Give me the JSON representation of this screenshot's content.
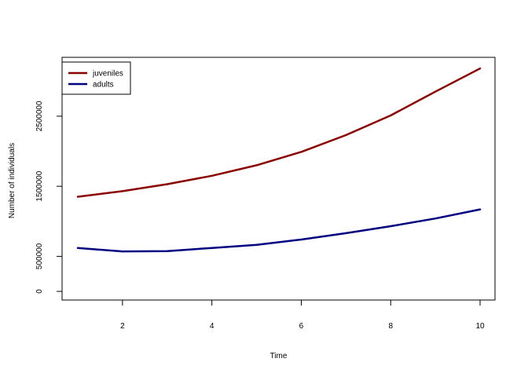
{
  "chart_data": {
    "type": "line",
    "title": "",
    "xlabel": "Time",
    "ylabel": "Number of individuals",
    "xlim": [
      1,
      10
    ],
    "ylim": [
      0,
      3250000
    ],
    "xticks": [
      2,
      4,
      6,
      8,
      10
    ],
    "yticks": [
      0,
      500000,
      1500000,
      2500000
    ],
    "grid": false,
    "legend": {
      "position": "top-left"
    },
    "x": [
      1,
      2,
      3,
      4,
      5,
      6,
      7,
      8,
      9,
      10
    ],
    "series": [
      {
        "name": "juveniles",
        "color": "#8b0000",
        "values": [
          1350000,
          1430000,
          1530000,
          1650000,
          1800000,
          1990000,
          2230000,
          2510000,
          2850000,
          3180000
        ]
      },
      {
        "name": "adults",
        "color": "#000080",
        "values": [
          620000,
          570000,
          575000,
          620000,
          665000,
          740000,
          830000,
          930000,
          1040000,
          1170000
        ]
      }
    ]
  }
}
